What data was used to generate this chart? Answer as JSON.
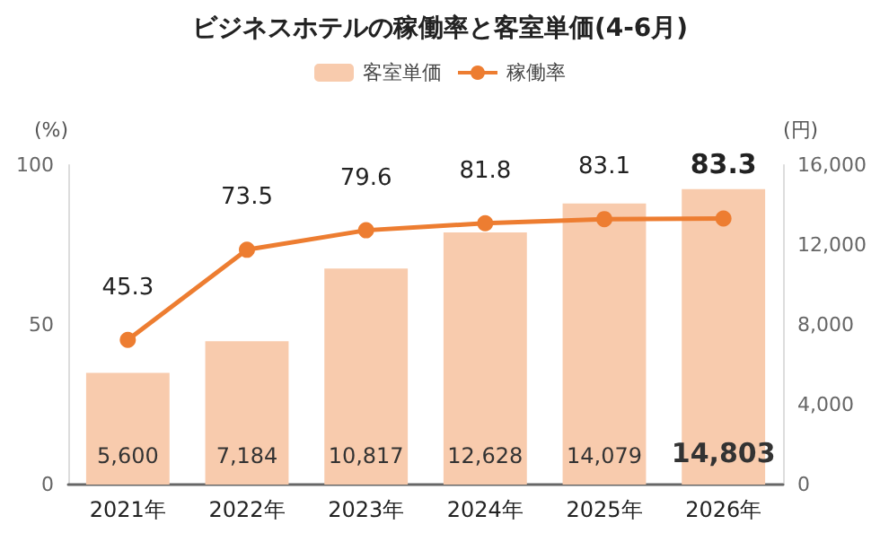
{
  "chart_data": {
    "type": "bar",
    "title": "ビジネスホテルの稼働率と客室単価(4-6月)",
    "ylabel": "(%)",
    "y2label": "(円)",
    "categories": [
      "2021年",
      "2022年",
      "2023年",
      "2024年",
      "2025年",
      "2026年"
    ],
    "series": [
      {
        "name": "客室単価",
        "axis": "y2",
        "color": "#f8cbad",
        "values": [
          5600,
          7184,
          10817,
          12628,
          14079,
          14803
        ],
        "value_labels": [
          "5,600",
          "7,184",
          "10,817",
          "12,628",
          "14,079",
          "14,803"
        ]
      },
      {
        "name": "稼働率",
        "type": "line",
        "color": "#ed7d31",
        "values": [
          45.3,
          73.5,
          79.6,
          81.8,
          83.1,
          83.3
        ],
        "value_labels": [
          "45.3",
          "73.5",
          "79.6",
          "81.8",
          "83.1",
          "83.3"
        ]
      }
    ],
    "ylim": [
      0,
      100
    ],
    "yticks": [
      0,
      50,
      100
    ],
    "y2lim": [
      0,
      16000
    ],
    "y2ticks": [
      0,
      {
        "value": 4000,
        "label": "4,000"
      },
      {
        "value": 8000,
        "label": "8,000"
      },
      {
        "value": 12000,
        "label": "12,000"
      },
      {
        "value": 16000,
        "label": "16,000"
      }
    ],
    "legend": "top",
    "grid": false,
    "marker": "circle"
  }
}
